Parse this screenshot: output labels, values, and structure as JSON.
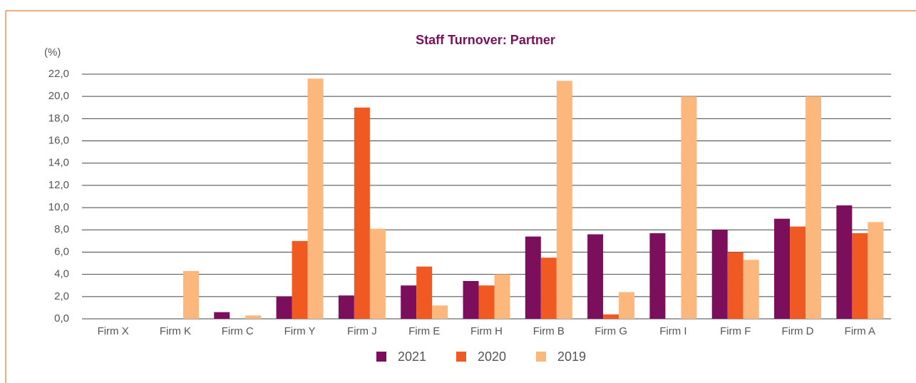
{
  "chart_data": {
    "type": "bar",
    "title": "Staff Turnover: Partner",
    "y_label": "(%)",
    "categories": [
      "Firm X",
      "Firm K",
      "Firm C",
      "Firm Y",
      "Firm J",
      "Firm E",
      "Firm H",
      "Firm B",
      "Firm G",
      "Firm I",
      "Firm F",
      "Firm D",
      "Firm A"
    ],
    "series": [
      {
        "name": "2021",
        "color": "#7b0f5c",
        "values": [
          0,
          0,
          0.6,
          2.0,
          2.1,
          3.0,
          3.4,
          7.4,
          7.6,
          7.7,
          8.0,
          9.0,
          10.2
        ]
      },
      {
        "name": "2020",
        "color": "#f05a22",
        "values": [
          0,
          0,
          0,
          7.0,
          19.0,
          4.7,
          3.0,
          5.5,
          0.4,
          0,
          6.0,
          8.3,
          7.7
        ]
      },
      {
        "name": "2019",
        "color": "#fbb77c",
        "values": [
          0,
          4.3,
          0.3,
          21.6,
          8.1,
          1.2,
          4.0,
          21.4,
          2.4,
          20.0,
          5.3,
          20.0,
          8.7
        ]
      }
    ],
    "ylim": [
      0,
      22
    ],
    "yticks": [
      {
        "value": 0,
        "label": "0,0"
      },
      {
        "value": 2,
        "label": "2,0"
      },
      {
        "value": 4,
        "label": "4,0"
      },
      {
        "value": 6,
        "label": "6,0"
      },
      {
        "value": 8,
        "label": "8,0"
      },
      {
        "value": 10,
        "label": "10,0"
      },
      {
        "value": 12,
        "label": "12,0"
      },
      {
        "value": 14,
        "label": "14,0"
      },
      {
        "value": 16,
        "label": "16,0"
      },
      {
        "value": 18,
        "label": "18,0"
      },
      {
        "value": 20,
        "label": "20,0"
      },
      {
        "value": 22,
        "label": "22,0"
      }
    ],
    "grid": true,
    "legend": "bottom"
  }
}
